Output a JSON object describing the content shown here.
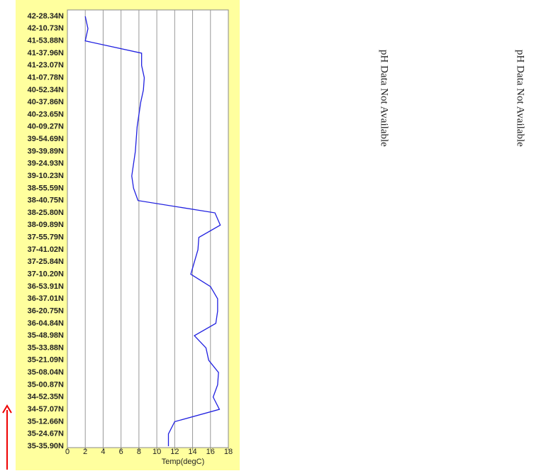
{
  "chart_data": {
    "type": "line",
    "x_label": "Temp(degC)",
    "categories": [
      "42-28.34N",
      "42-10.73N",
      "41-53.88N",
      "41-37.96N",
      "41-23.07N",
      "41-07.78N",
      "40-52.34N",
      "40-37.86N",
      "40-23.65N",
      "40-09.27N",
      "39-54.69N",
      "39-39.89N",
      "39-24.93N",
      "39-10.23N",
      "38-55.59N",
      "38-40.75N",
      "38-25.80N",
      "38-09.89N",
      "37-55.79N",
      "37-41.02N",
      "37-25.84N",
      "37-10.20N",
      "36-53.91N",
      "36-37.01N",
      "36-20.75N",
      "36-04.84N",
      "35-48.98N",
      "35-33.88N",
      "35-21.09N",
      "35-08.04N",
      "35-00.87N",
      "34-52.35N",
      "34-57.07N",
      "35-12.66N",
      "35-24.67N",
      "35-35.90N"
    ],
    "series": [
      {
        "color": "#2020e0",
        "values": [
          2.0,
          2.3,
          2.0,
          8.3,
          8.3,
          8.6,
          8.5,
          8.2,
          8.0,
          7.8,
          7.7,
          7.6,
          7.4,
          7.2,
          7.4,
          7.9,
          16.5,
          17.1,
          14.7,
          14.6,
          14.2,
          13.8,
          16.0,
          16.8,
          16.8,
          16.6,
          14.2,
          15.5,
          15.8,
          16.9,
          16.8,
          16.3,
          17.0,
          12.0,
          11.3,
          11.3
        ]
      }
    ],
    "xlim": [
      0,
      18
    ],
    "xticks": [
      0,
      2,
      4,
      6,
      8,
      10,
      12,
      14,
      16,
      18
    ],
    "grid": true,
    "notes": [
      "pH Data Not Available",
      "pH Data Not Available"
    ]
  }
}
